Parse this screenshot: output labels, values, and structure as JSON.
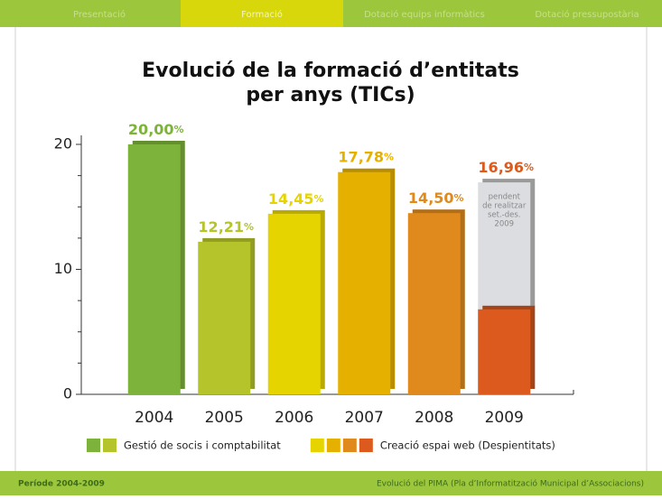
{
  "nav": {
    "tabs": [
      "Presentació",
      "Formació",
      "Dotació equips informàtics",
      "Dotació pressupostària"
    ],
    "active": 1
  },
  "footer": {
    "left": "Període 2004-2009",
    "right": "Evolució del PIMA (Pla d’Informatització Municipal d’Associacions)"
  },
  "chart_data": {
    "type": "bar",
    "title": "Evolució de la formació d’entitats per anys (TICs)",
    "title_lines": [
      "Evolució de la formació d’entitats",
      "per anys (TICs)"
    ],
    "categories": [
      "2004",
      "2005",
      "2006",
      "2007",
      "2008",
      "2009"
    ],
    "values": [
      20.0,
      12.21,
      14.45,
      17.78,
      14.5,
      16.96
    ],
    "value_labels": [
      "20,00%",
      "12,21%",
      "14,45%",
      "17,78%",
      "14,50%",
      "16,96%"
    ],
    "colors": [
      "#7db33a",
      "#b5c42b",
      "#e6d400",
      "#e6b000",
      "#e08a1e",
      "#dc5a1e"
    ],
    "pending": {
      "category": 5,
      "realized": 6.8,
      "color": "#dc5a1e",
      "pending_color": "#dcdde0",
      "annotation": [
        "pendent",
        "de realitzar",
        "set.-des.",
        "2009"
      ]
    },
    "ylim": [
      0,
      20
    ],
    "yticks": [
      0,
      10,
      20
    ],
    "minor_yticks": [
      2.5,
      5,
      7.5,
      12.5,
      15,
      17.5
    ],
    "legend": [
      {
        "name": "Gestió de socis i comptabilitat",
        "colors": [
          "#7db33a",
          "#b5c42b"
        ]
      },
      {
        "name": "Creació espai web (Despientitats)",
        "colors": [
          "#e6d400",
          "#e6b000",
          "#e08a1e",
          "#dc5a1e"
        ]
      }
    ]
  }
}
